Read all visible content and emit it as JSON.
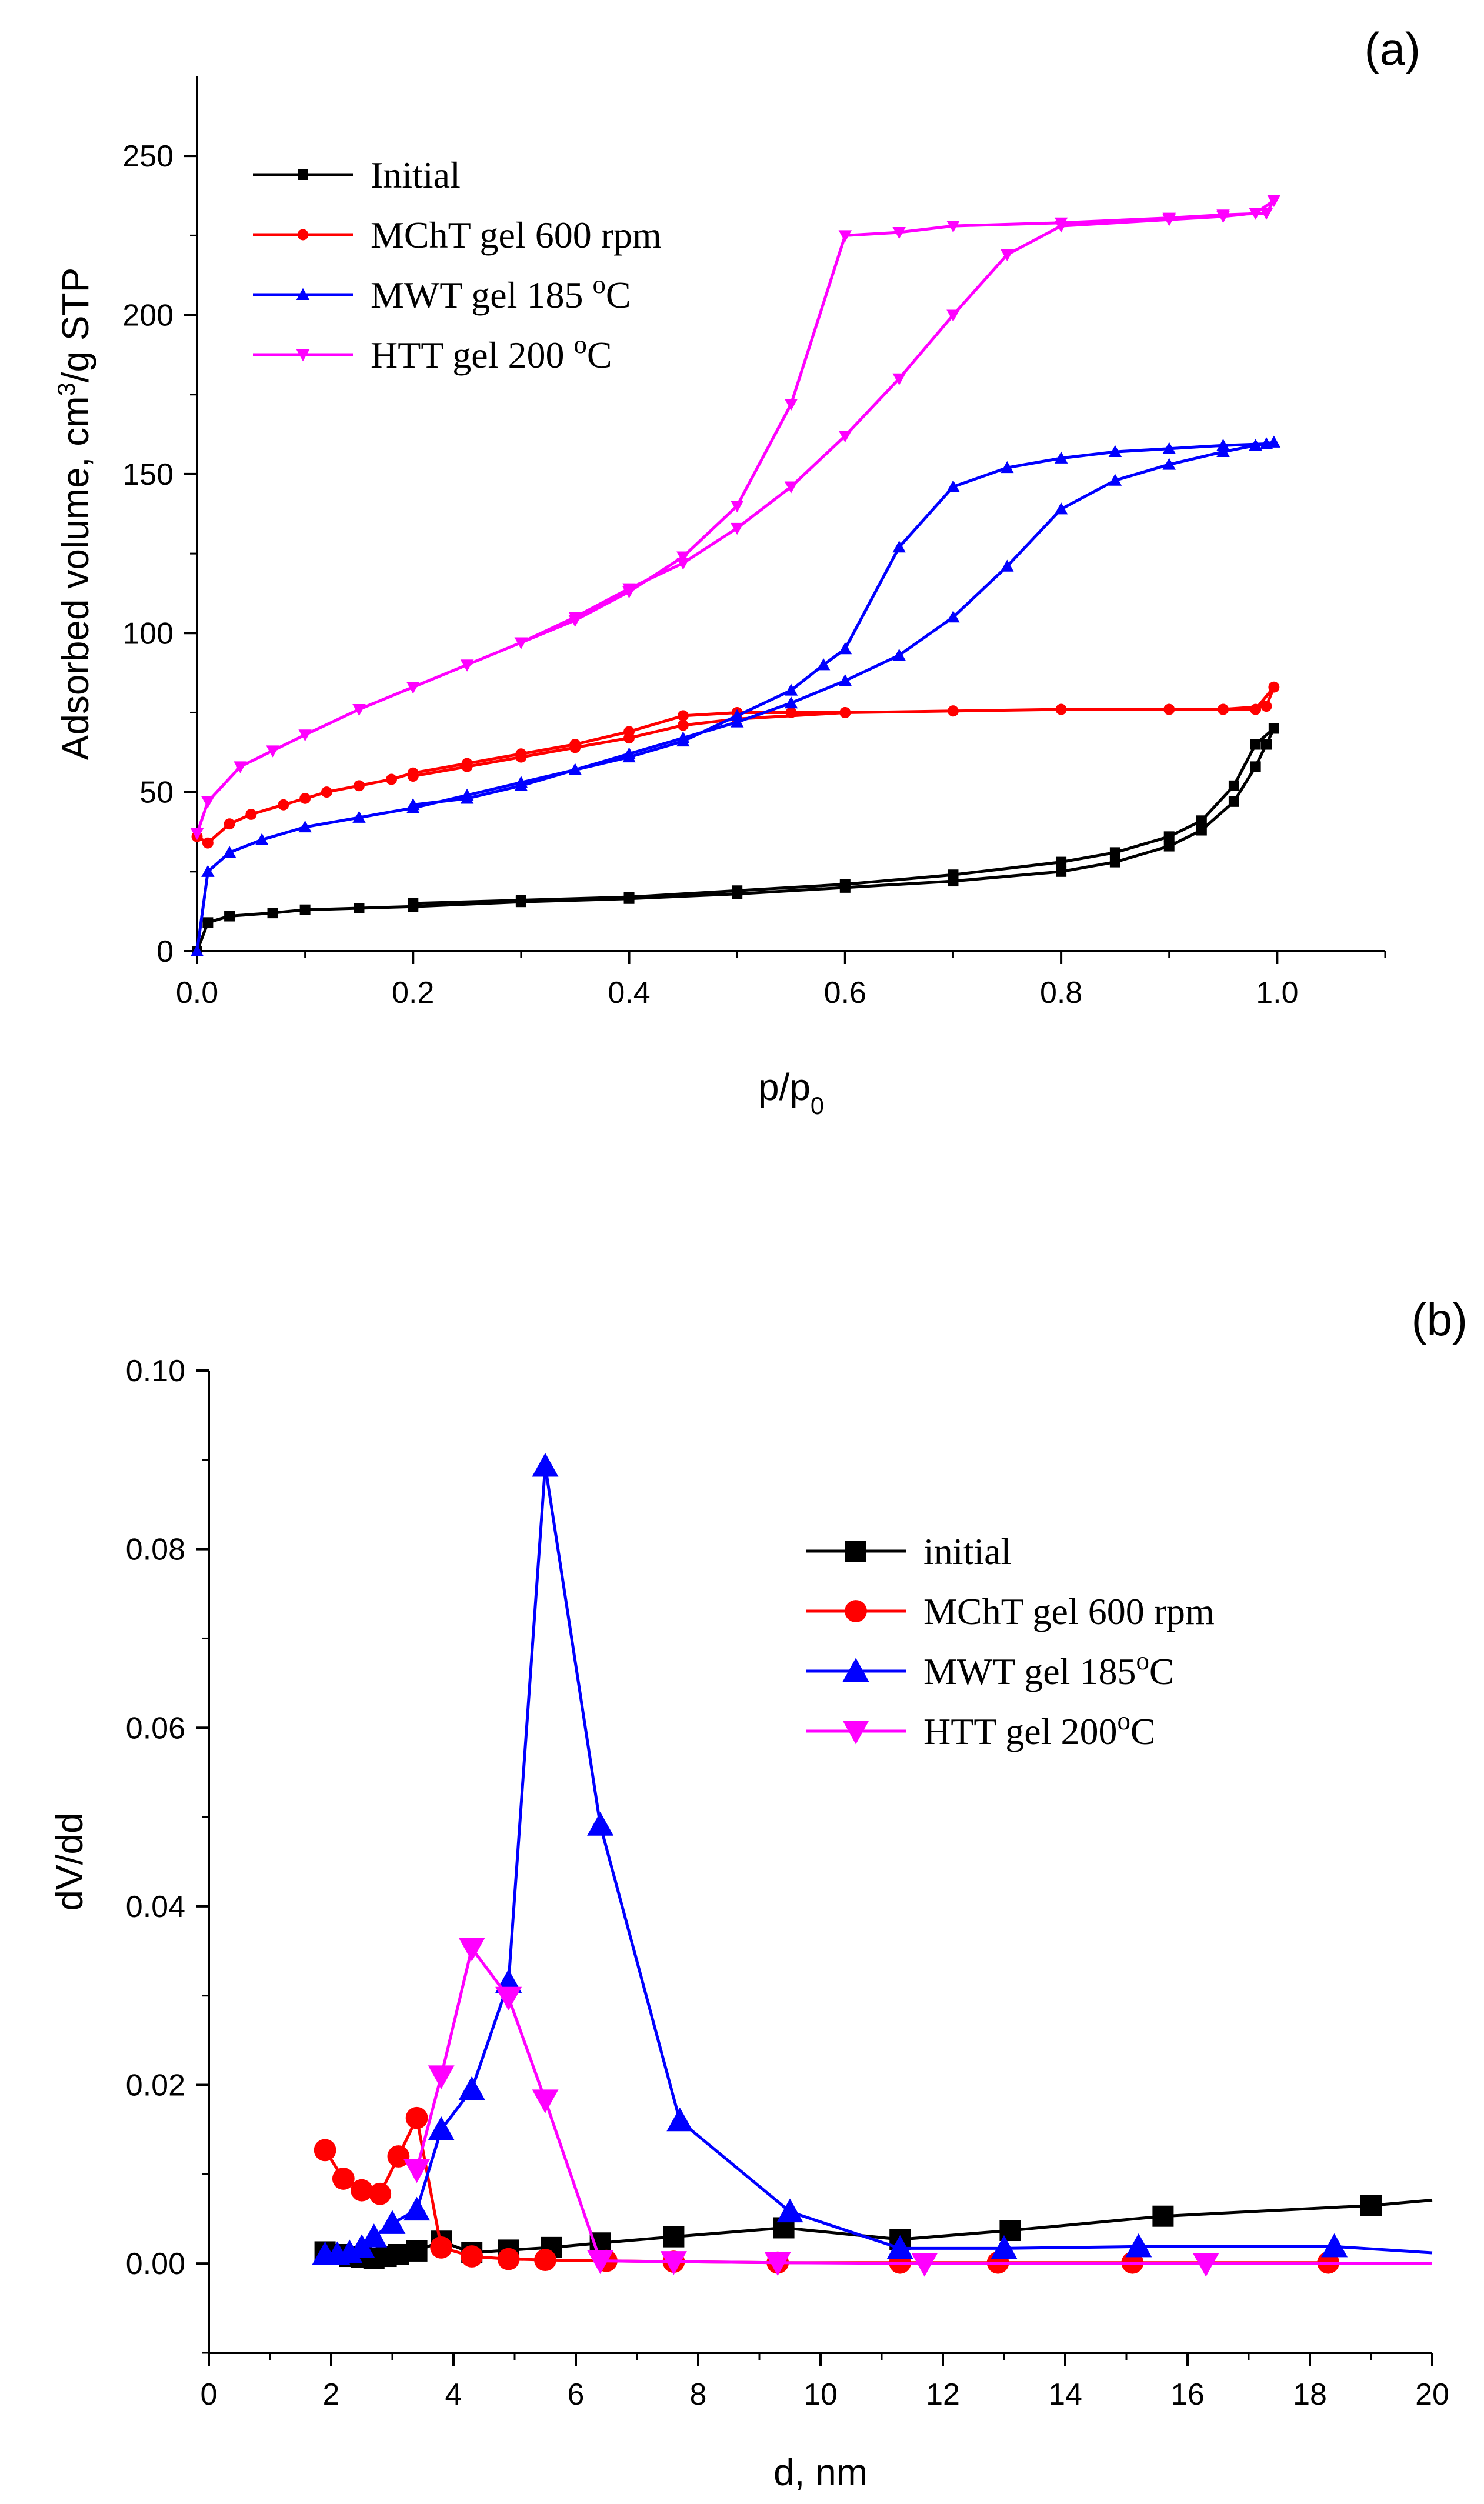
{
  "chart_data": [
    {
      "panel_label": "(a)",
      "type": "line",
      "xlabel": "p/p0",
      "xlabel_main": "p/p",
      "xlabel_sub": "0",
      "ylabel": "Adsorbed volume, cm3/g STP",
      "ylabel_parts": [
        "Adsorbed volume, cm",
        "3",
        "/g STP"
      ],
      "xlim": [
        0,
        1.1
      ],
      "ylim": [
        0,
        275
      ],
      "xticks": [
        0.0,
        0.2,
        0.4,
        0.6,
        0.8,
        1.0
      ],
      "xtick_labels": [
        "0.0",
        "0.2",
        "0.4",
        "0.6",
        "0.8",
        "1.0"
      ],
      "yticks": [
        0,
        50,
        100,
        150,
        200,
        250
      ],
      "ytick_labels": [
        "0",
        "50",
        "100",
        "150",
        "200",
        "250"
      ],
      "legend_position": "top-left",
      "series": [
        {
          "name": "Initial",
          "legend_parts": [
            "Initial"
          ],
          "color": "#000000",
          "marker": "square",
          "x": [
            0,
            0.01,
            0.03,
            0.07,
            0.1,
            0.15,
            0.2,
            0.3,
            0.4,
            0.5,
            0.6,
            0.7,
            0.8,
            0.85,
            0.9,
            0.93,
            0.96,
            0.98,
            0.99,
            0.997,
            0.98,
            0.96,
            0.93,
            0.9,
            0.85,
            0.8,
            0.7,
            0.6,
            0.5,
            0.4,
            0.3,
            0.2
          ],
          "y": [
            0,
            9,
            11,
            12,
            13,
            13.5,
            14,
            15.5,
            16.5,
            18,
            20,
            22,
            25,
            28,
            33,
            38,
            47,
            58,
            65,
            70,
            65,
            52,
            41,
            36,
            31,
            28,
            24,
            21,
            19,
            17,
            16,
            15
          ]
        },
        {
          "name": "MChT gel 600 rpm",
          "legend_parts": [
            "MChT gel 600 rpm"
          ],
          "color": "#ff0000",
          "marker": "circle",
          "x": [
            0,
            0.01,
            0.03,
            0.05,
            0.08,
            0.1,
            0.12,
            0.15,
            0.18,
            0.2,
            0.25,
            0.3,
            0.35,
            0.4,
            0.45,
            0.5,
            0.55,
            0.6,
            0.7,
            0.8,
            0.9,
            0.95,
            0.99,
            0.997,
            0.98,
            0.95,
            0.9,
            0.8,
            0.7,
            0.6,
            0.5,
            0.45,
            0.4,
            0.35,
            0.3,
            0.25,
            0.2
          ],
          "y": [
            36,
            34,
            40,
            43,
            46,
            48,
            50,
            52,
            54,
            56,
            59,
            62,
            65,
            69,
            74,
            75,
            75,
            75,
            75.5,
            76,
            76,
            76,
            77,
            83,
            76,
            76,
            76,
            76,
            75.5,
            75,
            73,
            71,
            67,
            64,
            61,
            58,
            55
          ]
        },
        {
          "name": "MWT gel 185 oC",
          "legend_parts": [
            "MWT gel 185 ",
            "o",
            "C"
          ],
          "color": "#0000ff",
          "marker": "triangle-up",
          "x": [
            0,
            0.01,
            0.03,
            0.06,
            0.1,
            0.15,
            0.2,
            0.25,
            0.3,
            0.35,
            0.4,
            0.45,
            0.5,
            0.55,
            0.58,
            0.6,
            0.65,
            0.7,
            0.75,
            0.8,
            0.85,
            0.9,
            0.95,
            0.99,
            0.997,
            0.98,
            0.95,
            0.9,
            0.85,
            0.8,
            0.75,
            0.7,
            0.65,
            0.6,
            0.55,
            0.5,
            0.45,
            0.4,
            0.35,
            0.3,
            0.25,
            0.2
          ],
          "y": [
            0,
            25,
            31,
            35,
            39,
            42,
            45,
            49,
            53,
            57,
            61,
            66,
            74,
            82,
            90,
            95,
            127,
            146,
            152,
            155,
            157,
            158,
            159,
            159.5,
            160,
            159,
            157,
            153,
            148,
            139,
            121,
            105,
            93,
            85,
            78,
            72,
            67,
            62,
            57,
            52,
            48,
            46
          ]
        },
        {
          "name": "HTT gel 200 oC",
          "legend_parts": [
            "HTT gel 200 ",
            "o",
            "C"
          ],
          "color": "#ff00ff",
          "marker": "triangle-down",
          "x": [
            0,
            0.01,
            0.04,
            0.07,
            0.1,
            0.15,
            0.2,
            0.25,
            0.3,
            0.35,
            0.4,
            0.45,
            0.5,
            0.55,
            0.6,
            0.65,
            0.7,
            0.8,
            0.9,
            0.95,
            0.99,
            0.997,
            0.98,
            0.95,
            0.9,
            0.8,
            0.75,
            0.7,
            0.65,
            0.6,
            0.55,
            0.5,
            0.45,
            0.4,
            0.35,
            0.3,
            0.25,
            0.2
          ],
          "y": [
            37,
            47,
            58,
            63,
            68,
            76,
            83,
            90,
            97,
            104,
            113,
            124,
            140,
            172,
            225,
            226,
            228,
            229,
            230.5,
            231.5,
            232,
            236,
            232,
            231,
            230,
            228,
            219,
            200,
            180,
            162,
            146,
            133,
            122,
            114,
            105,
            97,
            90,
            83
          ]
        }
      ]
    },
    {
      "panel_label": "(b)",
      "type": "line",
      "xlabel": "d, nm",
      "ylabel": "dV/dd",
      "xlim": [
        0,
        20
      ],
      "ylim": [
        -0.01,
        0.1
      ],
      "xticks": [
        0,
        2,
        4,
        6,
        8,
        10,
        12,
        14,
        16,
        18,
        20
      ],
      "xtick_labels": [
        "0",
        "2",
        "4",
        "6",
        "8",
        "10",
        "12",
        "14",
        "16",
        "18",
        "20"
      ],
      "yticks": [
        0.0,
        0.02,
        0.04,
        0.06,
        0.08,
        0.1
      ],
      "ytick_labels": [
        "0.00",
        "0.02",
        "0.04",
        "0.06",
        "0.08",
        "0.10"
      ],
      "legend_position": "top-right",
      "series": [
        {
          "name": "initial",
          "legend_parts": [
            "initial"
          ],
          "color": "#000000",
          "marker": "square",
          "x": [
            1.9,
            2.1,
            2.3,
            2.5,
            2.7,
            2.9,
            3.1,
            3.4,
            3.8,
            4.3,
            4.9,
            5.6,
            6.4,
            7.6,
            9.4,
            11.3,
            13.1,
            15.6,
            19.0,
            20.0
          ],
          "y": [
            0.0013,
            0.001,
            0.0008,
            0.0007,
            0.0006,
            0.0008,
            0.001,
            0.0014,
            0.0025,
            0.0012,
            0.0015,
            0.0018,
            0.0023,
            0.003,
            0.004,
            0.0027,
            0.0037,
            0.0053,
            0.0065,
            0.0071
          ],
          "markers": [
            true,
            true,
            true,
            true,
            true,
            true,
            true,
            true,
            true,
            true,
            true,
            true,
            true,
            true,
            true,
            true,
            true,
            true,
            true,
            false
          ]
        },
        {
          "name": "MChT gel 600 rpm",
          "legend_parts": [
            "MChT gel 600 rpm"
          ],
          "color": "#ff0000",
          "marker": "circle",
          "x": [
            1.9,
            2.2,
            2.5,
            2.8,
            3.1,
            3.4,
            3.8,
            4.3,
            4.9,
            5.5,
            6.5,
            7.6,
            9.3,
            11.3,
            12.9,
            15.1,
            18.3
          ],
          "y": [
            0.0127,
            0.0095,
            0.0082,
            0.0078,
            0.012,
            0.0163,
            0.0018,
            0.0008,
            0.0005,
            0.0004,
            0.0003,
            0.0002,
            0.0001,
            0.0001,
            0.0001,
            0.0001,
            0.0001
          ]
        },
        {
          "name": "MWT gel 185oC",
          "legend_parts": [
            "MWT gel 185",
            "o",
            "C"
          ],
          "color": "#0000ff",
          "marker": "triangle-up",
          "x": [
            1.9,
            2.1,
            2.3,
            2.5,
            2.7,
            3.0,
            3.4,
            3.8,
            4.3,
            4.9,
            5.5,
            6.4,
            7.7,
            9.5,
            11.3,
            13.0,
            15.2,
            18.4,
            20.0
          ],
          "y": [
            0.001,
            0.001,
            0.0012,
            0.0018,
            0.003,
            0.0045,
            0.006,
            0.015,
            0.0195,
            0.0315,
            0.0893,
            0.0491,
            0.016,
            0.0058,
            0.0017,
            0.0017,
            0.0019,
            0.0019,
            0.0012
          ],
          "markers": [
            true,
            true,
            true,
            true,
            true,
            true,
            true,
            true,
            true,
            true,
            true,
            true,
            true,
            true,
            true,
            true,
            true,
            true,
            false
          ]
        },
        {
          "name": "HTT gel 200oC",
          "legend_parts": [
            "HTT gel 200",
            "o",
            "C"
          ],
          "color": "#ff00ff",
          "marker": "triangle-down",
          "x": [
            3.4,
            3.8,
            4.3,
            4.9,
            5.5,
            6.4,
            7.6,
            9.3,
            11.7,
            16.3,
            20.0
          ],
          "y": [
            0.0105,
            0.021,
            0.0353,
            0.0298,
            0.0183,
            0.0003,
            0.0002,
            0.0001,
            0.0,
            0.0,
            0.0
          ],
          "markers": [
            true,
            true,
            true,
            true,
            true,
            true,
            true,
            true,
            true,
            true,
            false
          ]
        }
      ]
    }
  ]
}
